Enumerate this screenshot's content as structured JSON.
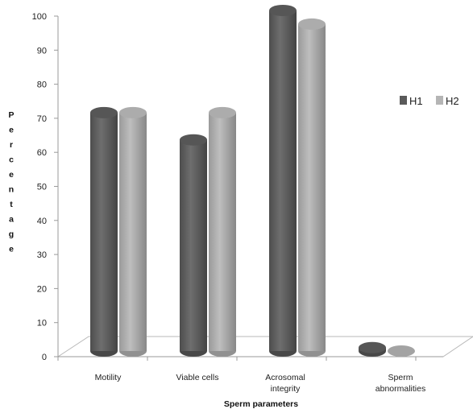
{
  "chart_data": {
    "type": "bar",
    "categories": [
      "Motility",
      "Viable cells",
      "Acrosomal integrity",
      "Sperm abnormalities"
    ],
    "category_lines": [
      [
        "Motility"
      ],
      [
        "Viable cells"
      ],
      [
        "Acrosomal",
        "integrity"
      ],
      [
        "Sperm",
        "abnormalities"
      ]
    ],
    "series": [
      {
        "name": "H1",
        "values": [
          70,
          62,
          100,
          1
        ],
        "color": "#5a5a5a"
      },
      {
        "name": "H2",
        "values": [
          70,
          70,
          96,
          0
        ],
        "color": "#b5b5b5"
      }
    ],
    "xlabel": "Sperm parameters",
    "ylabel": "Percentage",
    "ylim": [
      0,
      100
    ],
    "yticks": [
      0,
      10,
      20,
      30,
      40,
      50,
      60,
      70,
      80,
      90,
      100
    ],
    "legend_position": "right"
  }
}
